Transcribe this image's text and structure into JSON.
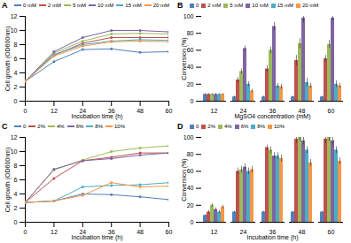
{
  "chart_data": [
    {
      "type": "line",
      "title": "A",
      "xlabel": "Incubation time (h)",
      "ylabel": "Cell growth (OD600nm)",
      "x": [
        0,
        12,
        24,
        36,
        48,
        60
      ],
      "xlim": [
        0,
        60
      ],
      "xticks": [
        0,
        12,
        24,
        36,
        48,
        60
      ],
      "ylim": [
        0,
        12
      ],
      "yticks": [
        0,
        2,
        4,
        6,
        8,
        10,
        12
      ],
      "marker": "circle",
      "legend": "top",
      "grid": false,
      "series": [
        {
          "name": "0 mM",
          "color": "#4f81bd",
          "values": [
            2.8,
            5.6,
            7.3,
            7.4,
            6.9,
            7.0
          ]
        },
        {
          "name": "2 mM",
          "color": "#c0504d",
          "values": [
            2.8,
            6.5,
            8.2,
            9.0,
            9.0,
            9.0
          ]
        },
        {
          "name": "5 mM",
          "color": "#9bbb59",
          "values": [
            2.8,
            6.8,
            8.5,
            9.5,
            9.6,
            9.5
          ]
        },
        {
          "name": "10 mM",
          "color": "#8064a2",
          "values": [
            2.8,
            7.0,
            9.0,
            10.0,
            10.0,
            9.8
          ]
        },
        {
          "name": "15 mM",
          "color": "#4bacc6",
          "values": [
            2.8,
            6.6,
            8.0,
            8.5,
            8.7,
            8.6
          ]
        },
        {
          "name": "20 mM",
          "color": "#f79646",
          "values": [
            2.8,
            6.4,
            7.8,
            8.4,
            8.5,
            8.4
          ]
        }
      ]
    },
    {
      "type": "bar",
      "title": "B",
      "xlabel": "MgSO4 concentration (mM)",
      "ylabel": "Conversion (%)",
      "categories": [
        12,
        24,
        36,
        48,
        60
      ],
      "ylim": [
        0,
        100
      ],
      "yticks": [
        0,
        20,
        40,
        60,
        80,
        100
      ],
      "legend": "top",
      "grid": false,
      "series": [
        {
          "name": "0",
          "color": "#4f81bd",
          "values": [
            8,
            5,
            5,
            5,
            5
          ],
          "errors": [
            1,
            1,
            1,
            1,
            1
          ]
        },
        {
          "name": "2 mM",
          "color": "#c0504d",
          "values": [
            8,
            25,
            38,
            48,
            50
          ],
          "errors": [
            1,
            3,
            4,
            6,
            4
          ]
        },
        {
          "name": "5 mM",
          "color": "#9bbb59",
          "values": [
            8,
            35,
            60,
            68,
            67
          ],
          "errors": [
            1,
            3,
            4,
            6,
            5
          ]
        },
        {
          "name": "10 mM",
          "color": "#8064a2",
          "values": [
            8,
            62,
            88,
            98,
            98
          ],
          "errors": [
            1,
            3,
            5,
            6,
            4
          ]
        },
        {
          "name": "15 mM",
          "color": "#4bacc6",
          "values": [
            8,
            20,
            18,
            22,
            20
          ],
          "errors": [
            1,
            3,
            3,
            5,
            4
          ]
        },
        {
          "name": "20 mM",
          "color": "#f79646",
          "values": [
            8,
            12,
            17,
            18,
            18
          ],
          "errors": [
            1,
            2,
            3,
            3,
            3
          ]
        }
      ]
    },
    {
      "type": "line",
      "title": "C",
      "xlabel": "Incubation time (h)",
      "ylabel": "Cell growth (OD600nm)",
      "x": [
        0,
        12,
        24,
        36,
        48,
        60
      ],
      "xlim": [
        0,
        60
      ],
      "xticks": [
        0,
        12,
        24,
        36,
        48,
        60
      ],
      "ylim": [
        0,
        12
      ],
      "yticks": [
        0,
        2,
        4,
        6,
        8,
        10,
        12
      ],
      "marker": "circle",
      "legend": "top",
      "grid": false,
      "series": [
        {
          "name": "0",
          "color": "#4f81bd",
          "values": [
            2.8,
            3.0,
            4.0,
            3.9,
            3.6,
            3.2
          ]
        },
        {
          "name": "2%",
          "color": "#c0504d",
          "values": [
            2.8,
            6.2,
            8.7,
            9.2,
            9.8,
            9.8
          ]
        },
        {
          "name": "4%",
          "color": "#9bbb59",
          "values": [
            2.8,
            7.4,
            8.8,
            10.0,
            10.5,
            10.8
          ]
        },
        {
          "name": "6%",
          "color": "#8064a2",
          "values": [
            2.8,
            7.5,
            8.7,
            9.0,
            9.5,
            9.8
          ]
        },
        {
          "name": "8%",
          "color": "#4bacc6",
          "values": [
            2.8,
            3.0,
            5.0,
            5.2,
            5.3,
            5.6
          ]
        },
        {
          "name": "10%",
          "color": "#f79646",
          "values": [
            2.8,
            3.0,
            3.8,
            5.6,
            5.0,
            5.1
          ]
        }
      ]
    },
    {
      "type": "bar",
      "title": "D",
      "xlabel": "Incubation time (h)",
      "ylabel": "Conversion (%)",
      "categories": [
        12,
        24,
        36,
        48,
        60
      ],
      "ylim": [
        0,
        100
      ],
      "yticks": [
        0,
        20,
        40,
        60,
        80,
        100
      ],
      "legend": "top",
      "grid": false,
      "series": [
        {
          "name": "0",
          "color": "#4f81bd",
          "values": [
            8,
            12,
            12,
            12,
            12
          ],
          "errors": [
            1,
            1,
            1,
            1,
            1
          ]
        },
        {
          "name": "2%",
          "color": "#c0504d",
          "values": [
            12,
            60,
            88,
            98,
            98
          ],
          "errors": [
            2,
            4,
            3,
            5,
            5
          ]
        },
        {
          "name": "4%",
          "color": "#9bbb59",
          "values": [
            20,
            62,
            85,
            100,
            100
          ],
          "errors": [
            2,
            4,
            4,
            5,
            5
          ]
        },
        {
          "name": "6%",
          "color": "#8064a2",
          "values": [
            15,
            65,
            78,
            96,
            96
          ],
          "errors": [
            2,
            4,
            4,
            5,
            5
          ]
        },
        {
          "name": "8%",
          "color": "#4bacc6",
          "values": [
            12,
            60,
            78,
            85,
            85
          ],
          "errors": [
            2,
            4,
            4,
            4,
            4
          ]
        },
        {
          "name": "10%",
          "color": "#f79646",
          "values": [
            18,
            62,
            75,
            70,
            72
          ],
          "errors": [
            2,
            4,
            4,
            4,
            4
          ]
        }
      ]
    }
  ]
}
